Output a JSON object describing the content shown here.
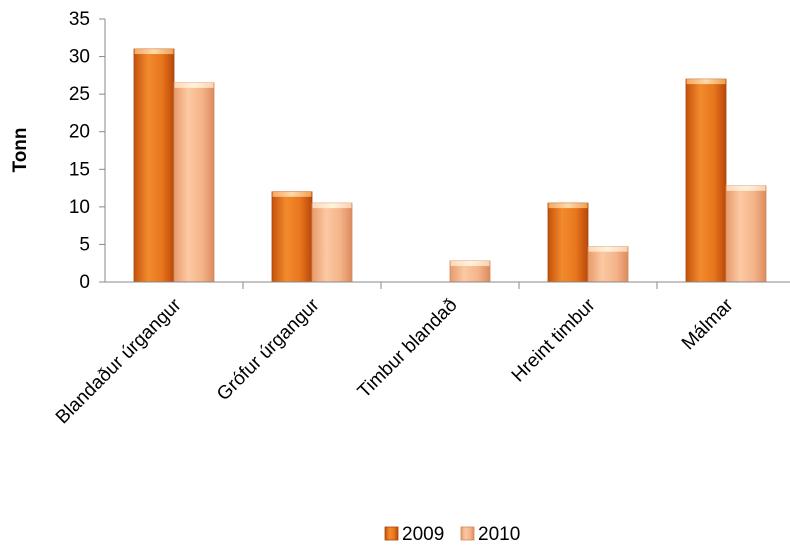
{
  "chart_data": {
    "type": "bar",
    "title": "",
    "xlabel": "",
    "ylabel": "Tonn",
    "ylim": [
      0,
      35
    ],
    "yticks": [
      0,
      5,
      10,
      15,
      20,
      25,
      30,
      35
    ],
    "categories": [
      "Blandaður úrgangur",
      "Grófur úrgangur",
      "Timbur blandað",
      "Hreint timbur",
      "Málmar"
    ],
    "series": [
      {
        "name": "2009",
        "values": [
          31,
          12,
          0,
          10.5,
          27
        ],
        "color": "#e8761c"
      },
      {
        "name": "2010",
        "values": [
          26.5,
          10.5,
          2.8,
          4.7,
          12.8
        ],
        "color": "#f5b48a"
      }
    ],
    "legend_position": "bottom",
    "grid": false
  }
}
